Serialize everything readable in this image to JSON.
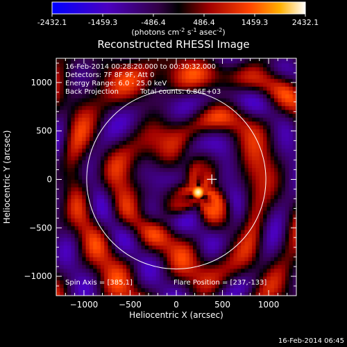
{
  "colorbar": {
    "ticks": [
      "-2432.1",
      "-1459.3",
      "-486.4",
      "486.4",
      "1459.3",
      "2432.1"
    ],
    "unit_main": "(photons cm",
    "unit_sup1": "-2",
    "unit_mid1": " s",
    "unit_sup2": "-1",
    "unit_mid2": " asec",
    "unit_sup3": "-2",
    "unit_end": ")"
  },
  "title": "Reconstructed RHESSI Image",
  "info": {
    "line1": "16-Feb-2014 00:28:20.000 to 00:30:32.000",
    "line2": "Detectors: 7F 8F 9F, Att 0",
    "line3": "Energy Range: 6.0 - 25.0 keV",
    "line4a": "Back Projection",
    "line4b": "Total counts: 6.86E+03"
  },
  "footer": {
    "spin_axis": "Spin Axis = [385,1]",
    "flare_position": "Flare Position = [237,-133]",
    "timestamp": "16-Feb-2014 06:45"
  },
  "chart_data": {
    "type": "heatmap",
    "title": "Reconstructed RHESSI Image",
    "xlabel": "Heliocentric X (arcsec)",
    "ylabel": "Heliocentric Y (arcsec)",
    "xlim": [
      -1300,
      1300
    ],
    "ylim": [
      -1200,
      1250
    ],
    "xticks": [
      -1000,
      -500,
      0,
      500,
      1000
    ],
    "yticks": [
      -1000,
      -500,
      0,
      500,
      1000
    ],
    "xtick_labels": [
      "−1000",
      "−500",
      "0",
      "500",
      "1000"
    ],
    "ytick_labels": [
      "−1000",
      "−500",
      "0",
      "500",
      "1000"
    ],
    "color_range": [
      -2432.1,
      2432.1
    ],
    "colormap": [
      "#0000ff",
      "#5a00c8",
      "#2a0040",
      "#000000",
      "#b40000",
      "#ff6400",
      "#ffff00",
      "#ffffff"
    ],
    "limb_circle": {
      "center": [
        0,
        0
      ],
      "radius": 970
    },
    "marker": {
      "x": 385,
      "y": 1,
      "symbol": "+"
    },
    "peak_source": {
      "x": 237,
      "y": -133
    },
    "grid": false
  }
}
